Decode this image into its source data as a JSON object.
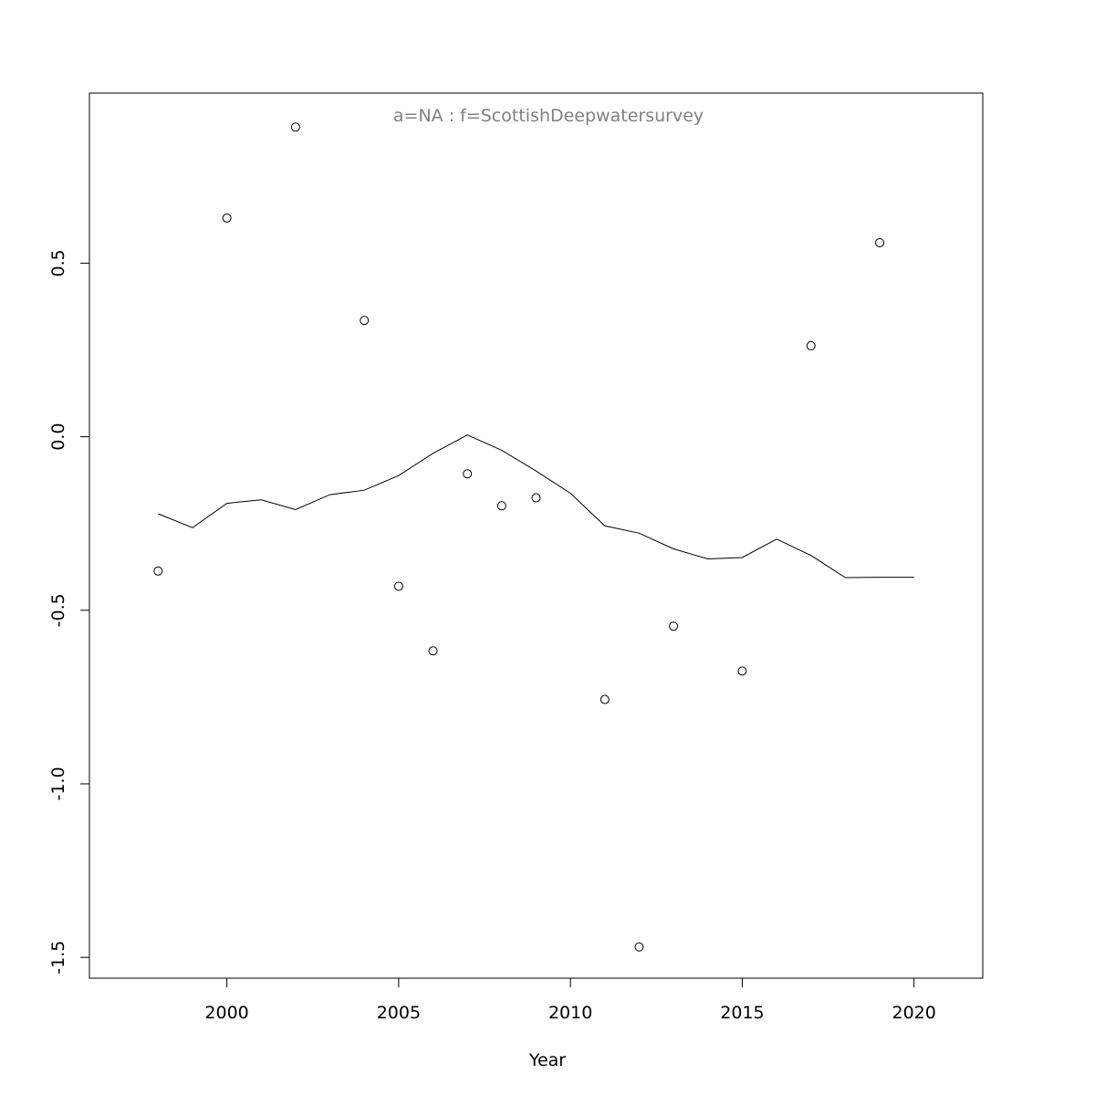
{
  "chart_data": {
    "type": "scatter",
    "title": "a=NA  :  f=ScottishDeepwatersurvey",
    "xlabel": "Year",
    "ylabel": "",
    "xlim": [
      1996,
      2022
    ],
    "ylim": [
      -1.56,
      0.99
    ],
    "x_ticks": [
      "2000",
      "2005",
      "2010",
      "2015",
      "2020"
    ],
    "y_ticks": [
      "-1.5",
      "-1.0",
      "-0.5",
      "0.0",
      "0.5"
    ],
    "grid": false,
    "series": [
      {
        "type": "points",
        "points": [
          {
            "x": 1998,
            "y": -0.387
          },
          {
            "x": 2000,
            "y": 0.63
          },
          {
            "x": 2002,
            "y": 0.892
          },
          {
            "x": 2004,
            "y": 0.335
          },
          {
            "x": 2005,
            "y": -0.431
          },
          {
            "x": 2006,
            "y": -0.617
          },
          {
            "x": 2007,
            "y": -0.107
          },
          {
            "x": 2008,
            "y": -0.199
          },
          {
            "x": 2009,
            "y": -0.176
          },
          {
            "x": 2011,
            "y": -0.757
          },
          {
            "x": 2012,
            "y": -1.47
          },
          {
            "x": 2013,
            "y": -0.546
          },
          {
            "x": 2015,
            "y": -0.675
          },
          {
            "x": 2017,
            "y": 0.262
          },
          {
            "x": 2019,
            "y": 0.559
          }
        ]
      },
      {
        "type": "line",
        "points": [
          {
            "x": 1998,
            "y": -0.222
          },
          {
            "x": 1999,
            "y": -0.262
          },
          {
            "x": 2000,
            "y": -0.192
          },
          {
            "x": 2001,
            "y": -0.182
          },
          {
            "x": 2002,
            "y": -0.21
          },
          {
            "x": 2003,
            "y": -0.167
          },
          {
            "x": 2004,
            "y": -0.154
          },
          {
            "x": 2005,
            "y": -0.112
          },
          {
            "x": 2006,
            "y": -0.048
          },
          {
            "x": 2007,
            "y": 0.005
          },
          {
            "x": 2008,
            "y": -0.039
          },
          {
            "x": 2009,
            "y": -0.099
          },
          {
            "x": 2010,
            "y": -0.163
          },
          {
            "x": 2011,
            "y": -0.257
          },
          {
            "x": 2012,
            "y": -0.278
          },
          {
            "x": 2013,
            "y": -0.323
          },
          {
            "x": 2014,
            "y": -0.352
          },
          {
            "x": 2015,
            "y": -0.348
          },
          {
            "x": 2016,
            "y": -0.295
          },
          {
            "x": 2017,
            "y": -0.342
          },
          {
            "x": 2018,
            "y": -0.406
          },
          {
            "x": 2019,
            "y": -0.405
          },
          {
            "x": 2020,
            "y": -0.405
          }
        ]
      }
    ]
  }
}
